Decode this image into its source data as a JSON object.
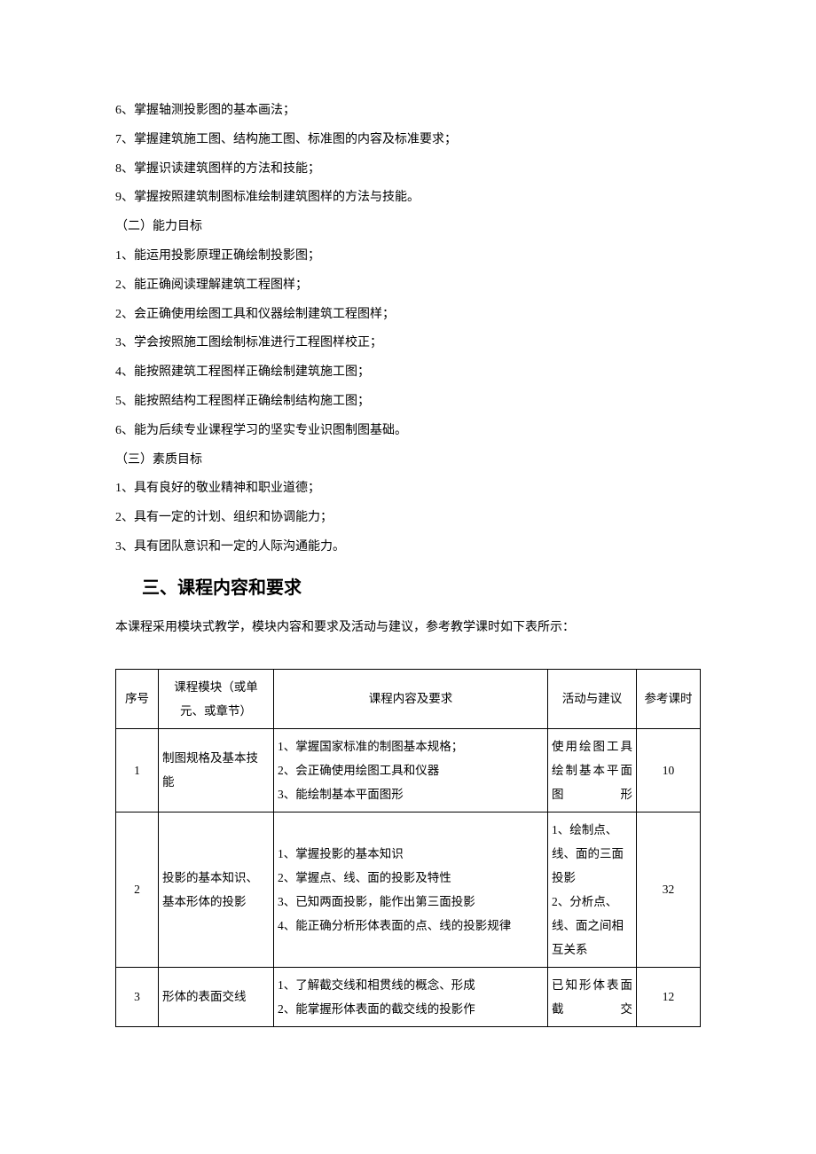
{
  "lines": {
    "l1": "6、掌握轴测投影图的基本画法；",
    "l2": "7、掌握建筑施工图、结构施工图、标准图的内容及标准要求；",
    "l3": "8、掌握识读建筑图样的方法和技能；",
    "l4": "9、掌握按照建筑制图标准绘制建筑图样的方法与技能。",
    "l5": "（二）能力目标",
    "l6": "1、能运用投影原理正确绘制投影图；",
    "l7": "2、能正确阅读理解建筑工程图样；",
    "l8": "2、会正确使用绘图工具和仪器绘制建筑工程图样；",
    "l9": "3、学会按照施工图绘制标准进行工程图样校正；",
    "l10": "4、能按照建筑工程图样正确绘制建筑施工图；",
    "l11": "5、能按照结构工程图样正确绘制结构施工图；",
    "l12": "6、能为后续专业课程学习的坚实专业识图制图基础。",
    "l13": "（三）素质目标",
    "l14": "1、具有良好的敬业精神和职业道德；",
    "l15": "2、具有一定的计划、组织和协调能力；",
    "l16": "3、具有团队意识和一定的人际沟通能力。"
  },
  "heading": "三、课程内容和要求",
  "intro": "本课程采用模块式教学，模块内容和要求及活动与建议，参考教学课时如下表所示：",
  "table": {
    "headers": {
      "num": "序号",
      "module": "课程模块（或单元、或章节）",
      "content": "课程内容及要求",
      "activity": "活动与建议",
      "hours": "参考课时"
    },
    "rows": [
      {
        "num": "1",
        "module": "制图规格及基本技能",
        "content": "1、掌握国家标准的制图基本规格；\n2、会正确使用绘图工具和仪器\n3、能绘制基本平面图形",
        "activity": "使用绘图工具绘制基本平面图形",
        "hours": "10"
      },
      {
        "num": "2",
        "module": "投影的基本知识、基本形体的投影",
        "content": "1、掌握投影的基本知识\n2、掌握点、线、面的投影及特性\n3、已知两面投影，能作出第三面投影\n4、能正确分析形体表面的点、线的投影规律",
        "activity": "1、绘制点、线、面的三面投影\n2、分析点、线、面之间相互关系",
        "hours": "32"
      },
      {
        "num": "3",
        "module": "形体的表面交线",
        "content": "1、了解截交线和相贯线的概念、形成\n2、能掌握形体表面的截交线的投影作",
        "activity": "已知形体表面截交",
        "hours": "12"
      }
    ]
  },
  "colors": {
    "text": "#000000",
    "background": "#ffffff",
    "border": "#000000"
  },
  "fonts": {
    "body_family": "SimSun",
    "heading_family": "SimHei",
    "body_size": 14,
    "heading_size": 20,
    "table_size": 13.5
  }
}
